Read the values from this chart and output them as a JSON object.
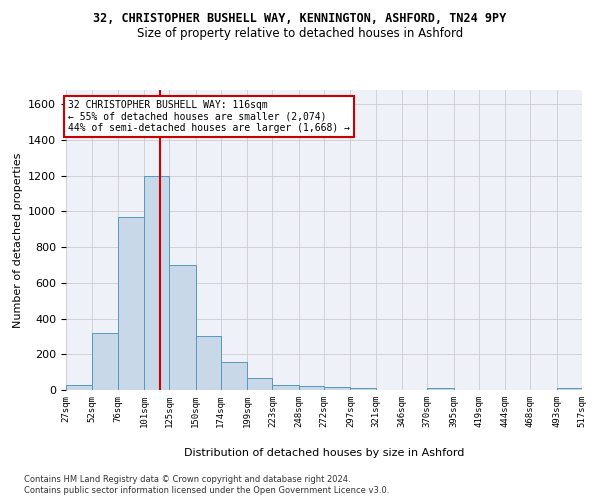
{
  "title1": "32, CHRISTOPHER BUSHELL WAY, KENNINGTON, ASHFORD, TN24 9PY",
  "title2": "Size of property relative to detached houses in Ashford",
  "xlabel": "Distribution of detached houses by size in Ashford",
  "ylabel": "Number of detached properties",
  "footer1": "Contains HM Land Registry data © Crown copyright and database right 2024.",
  "footer2": "Contains public sector information licensed under the Open Government Licence v3.0.",
  "bar_color": "#c8d8e8",
  "bar_edge_color": "#5599bb",
  "grid_color": "#cccccc",
  "bg_color": "#eef2f8",
  "property_size": 116,
  "vline_color": "#cc0000",
  "annotation_text1": "32 CHRISTOPHER BUSHELL WAY: 116sqm",
  "annotation_text2": "← 55% of detached houses are smaller (2,074)",
  "annotation_text3": "44% of semi-detached houses are larger (1,668) →",
  "bin_edges": [
    27,
    52,
    76,
    101,
    125,
    150,
    174,
    199,
    223,
    248,
    272,
    297,
    321,
    346,
    370,
    395,
    419,
    444,
    468,
    493,
    517
  ],
  "bar_heights": [
    30,
    320,
    970,
    1200,
    700,
    300,
    155,
    70,
    30,
    20,
    15,
    10,
    0,
    0,
    10,
    0,
    0,
    0,
    0,
    10
  ],
  "ylim": [
    0,
    1680
  ],
  "yticks": [
    0,
    200,
    400,
    600,
    800,
    1000,
    1200,
    1400,
    1600
  ]
}
